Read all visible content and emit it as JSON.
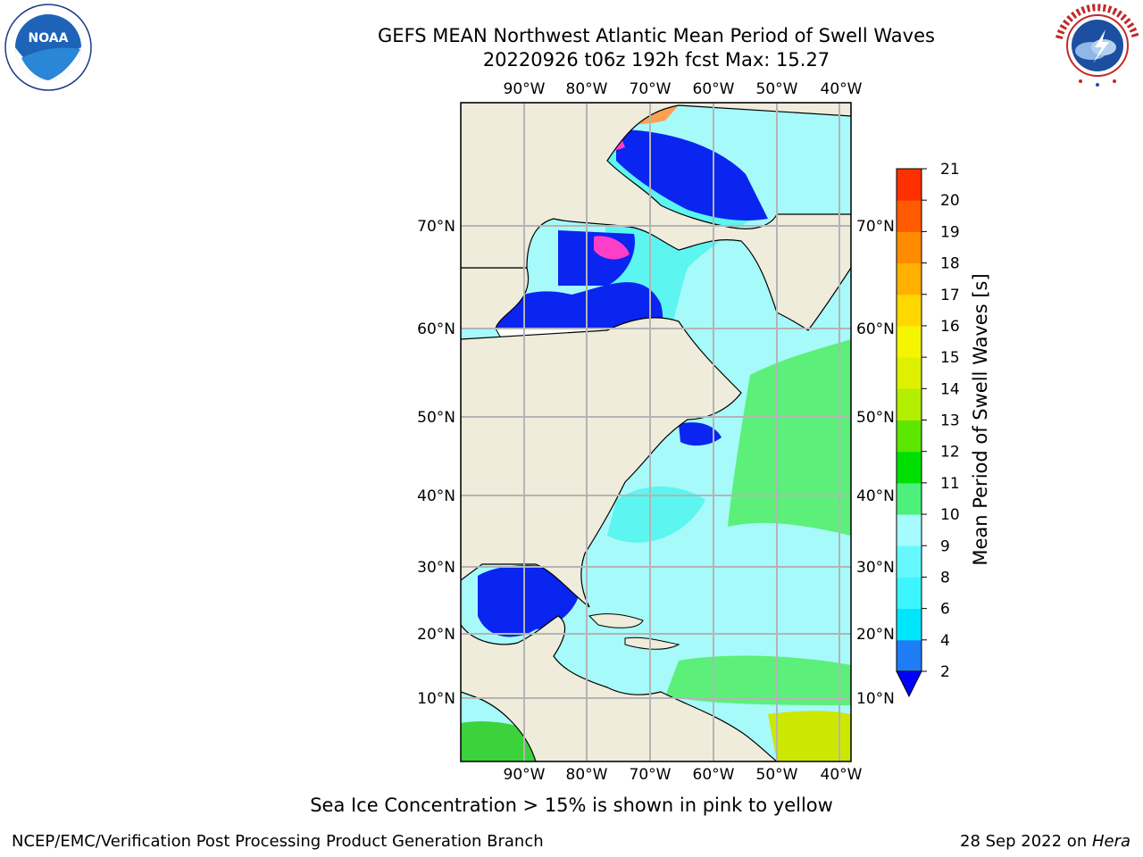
{
  "header": {
    "title_line1": "GEFS MEAN Northwest Atlantic Mean Period of Swell Waves",
    "title_line2": "20220926 t06z 192h fcst   Max: 15.27"
  },
  "logos": {
    "left": {
      "name": "NOAA",
      "ring_text": "NATIONAL OCEANIC AND ATMOSPHERIC ADMINISTRATION · U.S. DEPARTMENT OF COMMERCE"
    },
    "right": {
      "ring_text": "NATIONAL WEATHER SERVICE"
    }
  },
  "map": {
    "lon_labels": [
      "90°W",
      "80°W",
      "70°W",
      "60°W",
      "50°W",
      "40°W"
    ],
    "lat_labels": [
      "70°N",
      "60°N",
      "50°N",
      "40°N",
      "30°N",
      "20°N",
      "10°N"
    ],
    "colors": {
      "land": "#efecdc",
      "ocean_light": "#a6fafa",
      "ocean_mid": "#5cf5f0",
      "green": "#5cf07a",
      "deep_blue": "#0a25f0",
      "ice_pink": "#ff3ec8",
      "grid": "#b4b4b4"
    }
  },
  "colorbar": {
    "label": "Mean Period of Swell Waves [s]",
    "ticks": [
      "2",
      "4",
      "6",
      "8",
      "9",
      "10",
      "11",
      "12",
      "13",
      "14",
      "15",
      "16",
      "17",
      "18",
      "19",
      "20",
      "21"
    ],
    "colors": [
      "#1e7cf5",
      "#00e6ff",
      "#3cf5ff",
      "#66f8ff",
      "#a6fbff",
      "#4cf07a",
      "#00e000",
      "#5ce600",
      "#b4ee00",
      "#dcf000",
      "#f5f500",
      "#ffd800",
      "#ffb000",
      "#ff8c00",
      "#ff5a00",
      "#ff3000",
      "#ff0000"
    ],
    "under_color": "#0000ff"
  },
  "caption": "Sea Ice Concentration > 15% is shown in pink to yellow",
  "footer": {
    "left": "NCEP/EMC/Verification Post Processing Product Generation Branch",
    "right_date": "28 Sep 2022 on ",
    "right_host": "Hera"
  }
}
